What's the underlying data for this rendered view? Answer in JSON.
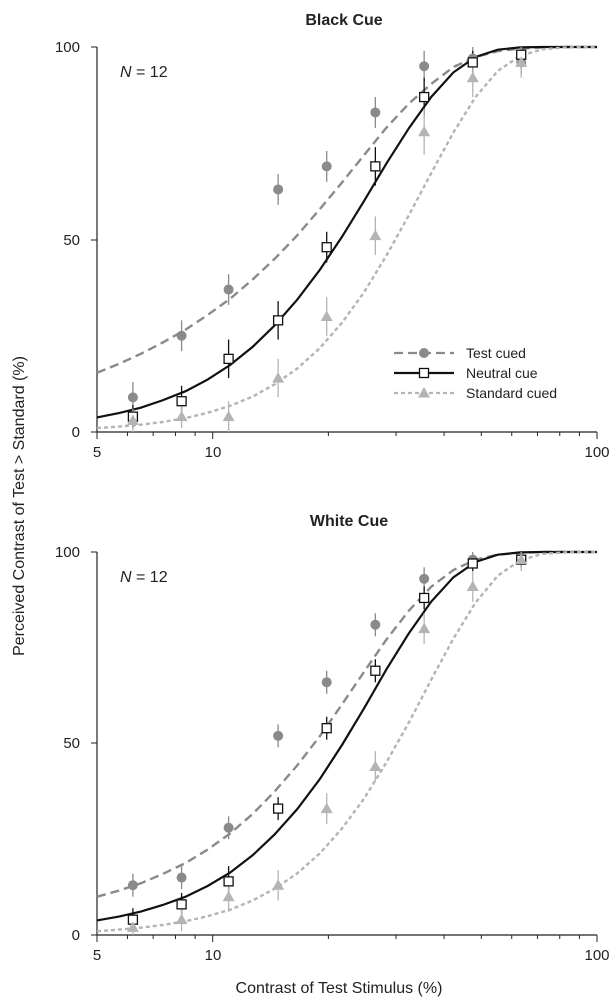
{
  "shared": {
    "ylabel": "Perceived Contrast of Test > Standard (%)",
    "xlabel": "Contrast of Test Stimulus (%)"
  },
  "chart_data": [
    {
      "type": "line",
      "title": "Black Cue",
      "annotation_n": "12",
      "xscale": "log",
      "xlim": [
        5,
        100
      ],
      "ylim": [
        0,
        100
      ],
      "xticks": [
        5,
        10,
        100
      ],
      "xtick_labels": [
        "5",
        "10",
        "100"
      ],
      "yticks": [
        0,
        50,
        100
      ],
      "ytick_labels": [
        "0",
        "50",
        "100"
      ],
      "legend": {
        "placement": "lower-right"
      },
      "series": [
        {
          "name": "Test cued",
          "color": "#8a8a8a",
          "marker": "circle",
          "line": "dashed",
          "x": [
            6.2,
            8.3,
            11.0,
            14.8,
            19.8,
            26.5,
            35.5,
            47.5,
            63.5
          ],
          "y": [
            9,
            25,
            37,
            63,
            69,
            83,
            95,
            97,
            96
          ],
          "err": [
            4,
            4,
            4,
            4,
            4,
            4,
            4,
            3,
            3
          ],
          "fit_x": [
            5,
            5.7,
            6.5,
            7.4,
            8.5,
            9.7,
            11.1,
            12.7,
            14.5,
            16.6,
            19.0,
            21.7,
            24.8,
            28.3,
            32.4,
            37.0,
            42.3,
            48.3,
            55.2,
            63.1,
            72.1,
            82.4,
            94.2,
            100
          ],
          "fit_y": [
            15.4,
            17.7,
            20.3,
            23.2,
            26.6,
            30.4,
            34.6,
            39.6,
            45.0,
            51.1,
            57.9,
            64.8,
            72.0,
            79.0,
            85.3,
            90.4,
            94.8,
            97.4,
            98.9,
            99.6,
            99.9,
            100,
            100,
            100
          ]
        },
        {
          "name": "Neutral cue",
          "color": "#111111",
          "marker": "square",
          "line": "solid",
          "x": [
            6.2,
            8.3,
            11.0,
            14.8,
            19.8,
            26.5,
            35.5,
            47.5,
            63.5
          ],
          "y": [
            4,
            8,
            19,
            29,
            48,
            69,
            87,
            96,
            98
          ],
          "err": [
            3,
            4,
            5,
            5,
            4,
            5,
            5,
            3,
            2
          ],
          "fit_x": [
            5,
            5.7,
            6.5,
            7.4,
            8.5,
            9.7,
            11.1,
            12.7,
            14.5,
            16.6,
            19.0,
            21.7,
            24.8,
            28.3,
            32.4,
            37.0,
            42.3,
            48.3,
            55.2,
            63.1,
            72.1,
            82.4,
            94.2,
            100
          ],
          "fit_y": [
            3.8,
            4.9,
            6.3,
            8.2,
            10.6,
            13.6,
            17.4,
            22.1,
            27.7,
            34.4,
            42.1,
            50.7,
            60.1,
            69.7,
            78.9,
            87.0,
            93.4,
            97.4,
            99.3,
            99.9,
            100,
            100,
            100,
            100
          ]
        },
        {
          "name": "Standard cued",
          "color": "#b4b4b4",
          "marker": "triangle",
          "line": "dotted",
          "x": [
            6.2,
            8.3,
            11.0,
            14.8,
            19.8,
            26.5,
            35.5,
            47.5,
            63.5
          ],
          "y": [
            3,
            4,
            4,
            14,
            30,
            51,
            78,
            92,
            96
          ],
          "err": [
            3,
            3,
            4,
            5,
            5,
            5,
            6,
            5,
            4
          ],
          "fit_x": [
            5,
            5.7,
            6.5,
            7.4,
            8.5,
            9.7,
            11.1,
            12.7,
            14.5,
            16.6,
            19.0,
            21.7,
            24.8,
            28.3,
            32.4,
            37.0,
            42.3,
            48.3,
            55.2,
            63.1,
            72.1,
            82.4,
            94.2,
            100
          ],
          "fit_y": [
            1.0,
            1.4,
            1.9,
            2.6,
            3.6,
            5.0,
            6.8,
            9.2,
            12.4,
            16.5,
            21.8,
            28.4,
            36.4,
            45.8,
            56.3,
            67.2,
            77.8,
            87.0,
            93.8,
            97.7,
            99.4,
            99.9,
            100,
            100
          ]
        }
      ]
    },
    {
      "type": "line",
      "title": "White Cue",
      "annotation_n": "12",
      "xscale": "log",
      "xlim": [
        5,
        100
      ],
      "ylim": [
        0,
        100
      ],
      "xticks": [
        5,
        10,
        100
      ],
      "xtick_labels": [
        "5",
        "10",
        "100"
      ],
      "yticks": [
        0,
        50,
        100
      ],
      "ytick_labels": [
        "0",
        "50",
        "100"
      ],
      "series": [
        {
          "name": "Test cued",
          "color": "#8a8a8a",
          "marker": "circle",
          "line": "dashed",
          "x": [
            6.2,
            8.3,
            11.0,
            14.8,
            19.8,
            26.5,
            35.5,
            47.5,
            63.5
          ],
          "y": [
            13,
            15,
            28,
            52,
            66,
            81,
            93,
            98,
            98
          ],
          "err": [
            3,
            3,
            3,
            3,
            3,
            3,
            3,
            2,
            2
          ],
          "fit_x": [
            5,
            5.7,
            6.5,
            7.4,
            8.5,
            9.7,
            11.1,
            12.7,
            14.5,
            16.6,
            19.0,
            21.7,
            24.8,
            28.3,
            32.4,
            37.0,
            42.3,
            48.3,
            55.2,
            63.1,
            72.1,
            82.4,
            94.2,
            100
          ],
          "fit_y": [
            10.0,
            11.6,
            13.5,
            15.9,
            18.8,
            22.3,
            26.5,
            31.6,
            37.5,
            44.3,
            51.9,
            60.2,
            68.8,
            77.1,
            84.7,
            90.9,
            95.3,
            98.0,
            99.3,
            99.8,
            100,
            100,
            100,
            100
          ]
        },
        {
          "name": "Neutral cue",
          "color": "#111111",
          "marker": "square",
          "line": "solid",
          "x": [
            6.2,
            8.3,
            11.0,
            14.8,
            19.8,
            26.5,
            35.5,
            47.5,
            63.5
          ],
          "y": [
            4,
            8,
            14,
            33,
            54,
            69,
            88,
            97,
            98
          ],
          "err": [
            3,
            3,
            4,
            3,
            3,
            3,
            3,
            2,
            2
          ],
          "fit_x": [
            5,
            5.7,
            6.5,
            7.4,
            8.5,
            9.7,
            11.1,
            12.7,
            14.5,
            16.6,
            19.0,
            21.7,
            24.8,
            28.3,
            32.4,
            37.0,
            42.3,
            48.3,
            55.2,
            63.1,
            72.1,
            82.4,
            94.2,
            100
          ],
          "fit_y": [
            3.8,
            4.8,
            6.1,
            7.8,
            10.0,
            12.8,
            16.3,
            20.8,
            26.3,
            32.9,
            40.7,
            49.6,
            59.3,
            69.3,
            78.8,
            87.0,
            93.4,
            97.4,
            99.3,
            99.9,
            100,
            100,
            100,
            100
          ]
        },
        {
          "name": "Standard cued",
          "color": "#b4b4b4",
          "marker": "triangle",
          "line": "dotted",
          "x": [
            6.2,
            8.3,
            11.0,
            14.8,
            19.8,
            26.5,
            35.5,
            47.5,
            63.5
          ],
          "y": [
            2,
            4,
            10,
            13,
            33,
            44,
            80,
            91,
            98
          ],
          "err": [
            2,
            3,
            4,
            4,
            4,
            4,
            4,
            4,
            3
          ],
          "fit_x": [
            5,
            5.7,
            6.5,
            7.4,
            8.5,
            9.7,
            11.1,
            12.7,
            14.5,
            16.6,
            19.0,
            21.7,
            24.8,
            28.3,
            32.4,
            37.0,
            42.3,
            48.3,
            55.2,
            63.1,
            72.1,
            82.4,
            94.2,
            100
          ],
          "fit_y": [
            1.0,
            1.4,
            1.9,
            2.6,
            3.6,
            4.9,
            6.6,
            9.0,
            12.1,
            16.1,
            21.3,
            27.8,
            35.7,
            45.0,
            55.5,
            66.6,
            77.4,
            86.8,
            93.8,
            97.8,
            99.5,
            99.9,
            100,
            100
          ]
        }
      ]
    }
  ]
}
